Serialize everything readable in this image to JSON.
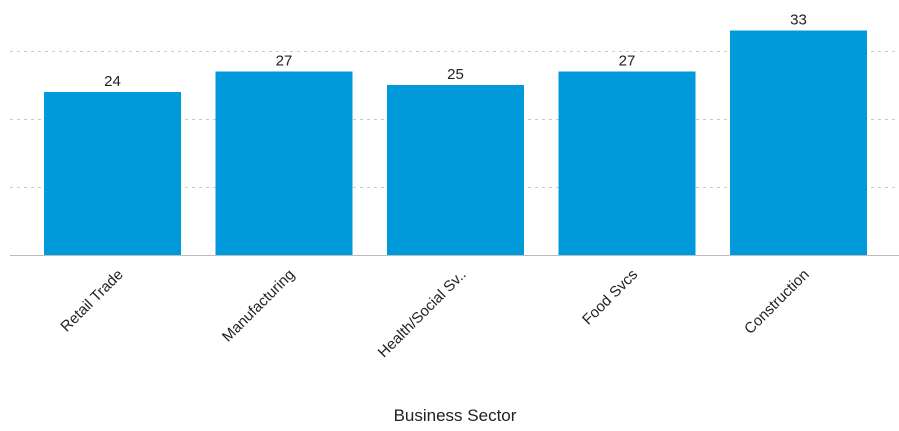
{
  "chart_data": {
    "type": "bar",
    "categories": [
      "Retail Trade",
      "Manufacturing",
      "Health/Social Sv..",
      "Food Svcs",
      "Construction"
    ],
    "values": [
      24,
      27,
      25,
      27,
      33
    ],
    "xlabel": "Business Sector",
    "ylabel": "",
    "ylim": [
      0,
      34
    ],
    "grid": "horizontal dashed",
    "bar_color": "#009ADB",
    "data_labels": [
      "24",
      "27",
      "25",
      "27",
      "33"
    ]
  }
}
